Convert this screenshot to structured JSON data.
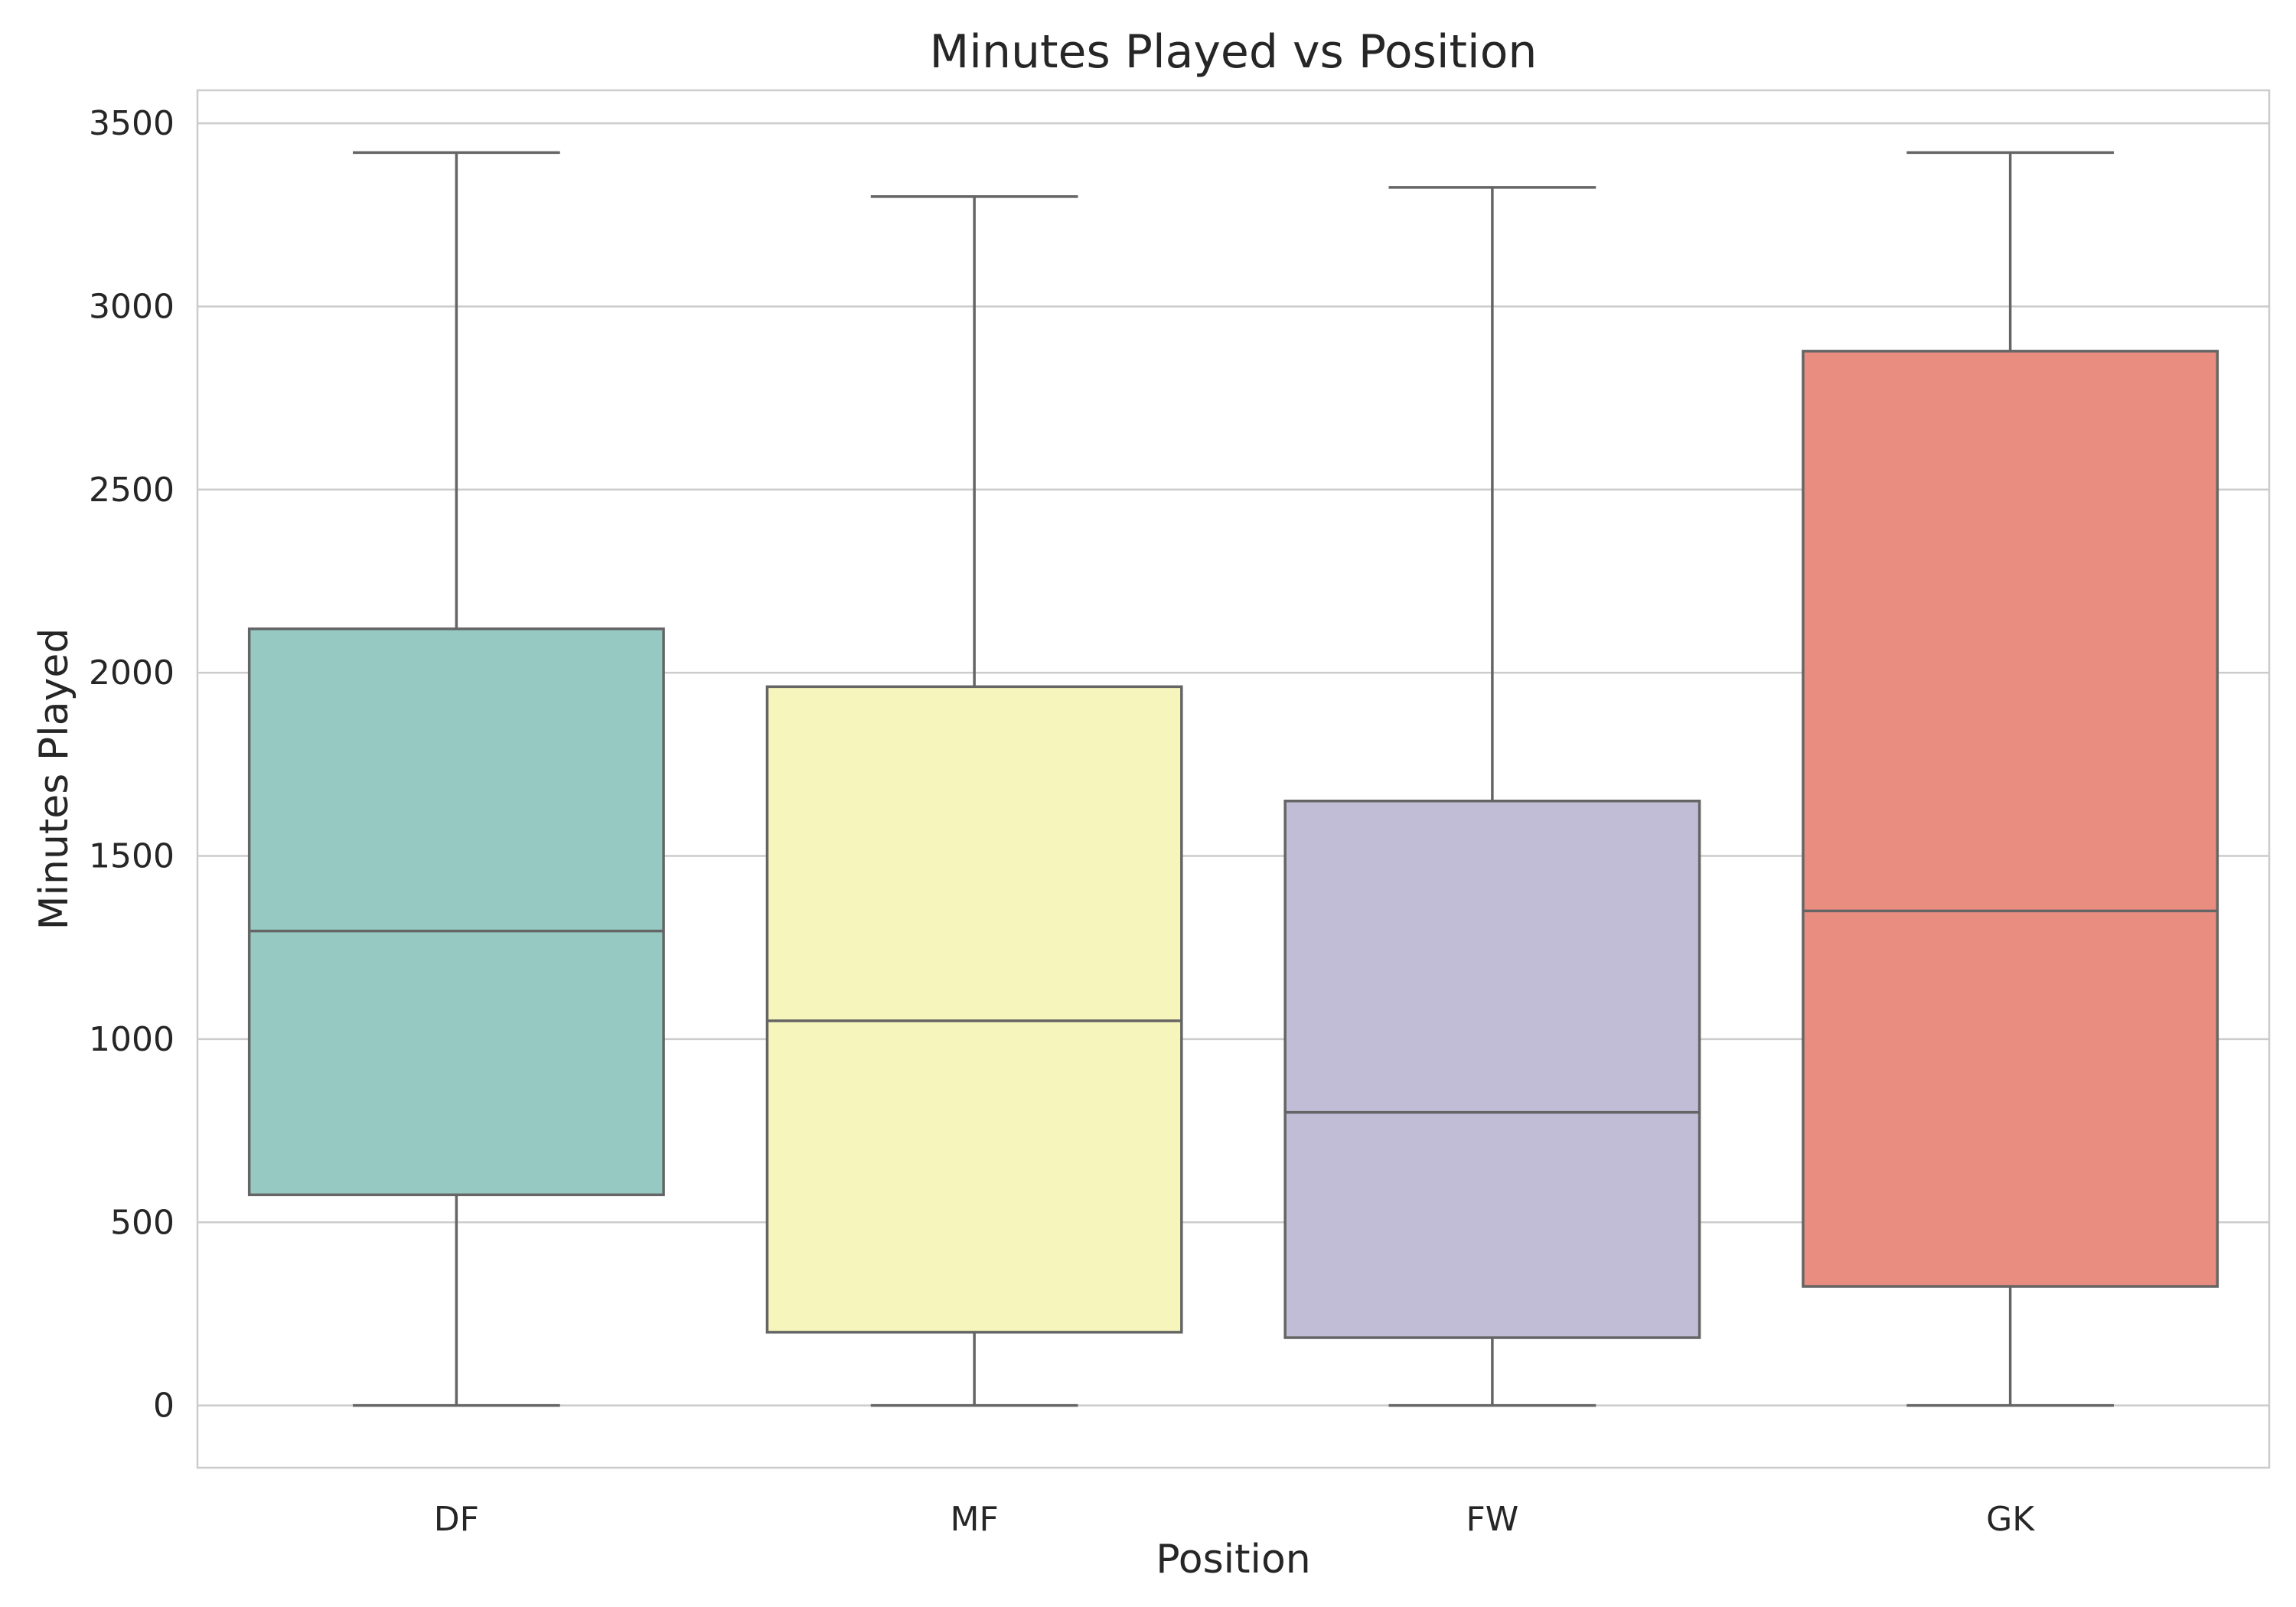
{
  "chart_data": {
    "type": "box",
    "title": "Minutes Played vs Position",
    "xlabel": "Position",
    "ylabel": "Minutes Played",
    "categories": [
      "DF",
      "MF",
      "FW",
      "GK"
    ],
    "ylim": [
      -170,
      3590
    ],
    "yticks": [
      0,
      500,
      1000,
      1500,
      2000,
      2500,
      3000,
      3500
    ],
    "grid": "horizontal",
    "boxes": [
      {
        "category": "DF",
        "whisker_low": 0,
        "q1": 575,
        "median": 1295,
        "q3": 2120,
        "whisker_high": 3420,
        "color": "#96c9c1"
      },
      {
        "category": "MF",
        "whisker_low": 0,
        "q1": 200,
        "median": 1050,
        "q3": 1962,
        "whisker_high": 3300,
        "color": "#f6f5bb"
      },
      {
        "category": "FW",
        "whisker_low": 0,
        "q1": 185,
        "median": 800,
        "q3": 1650,
        "whisker_high": 3325,
        "color": "#c1bdd6"
      },
      {
        "category": "GK",
        "whisker_low": 0,
        "q1": 325,
        "median": 1350,
        "q3": 2878,
        "whisker_high": 3420,
        "color": "#e98d81"
      }
    ]
  }
}
